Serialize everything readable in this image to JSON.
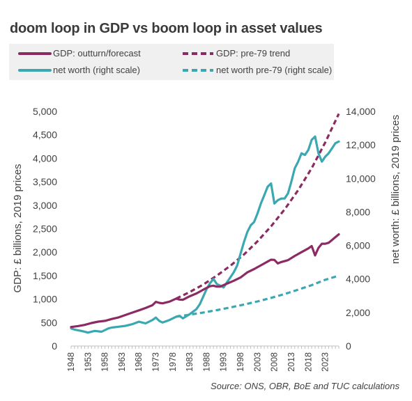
{
  "title": "doom loop in GDP vs boom loop in asset values",
  "source": "Source: ONS, OBR, BoE and TUC calculations",
  "colors": {
    "gdp": "#8c2a63",
    "networth": "#3aa8b1",
    "axis": "#bfbfbf",
    "legend_bg": "#f0f0f0",
    "text": "#404040"
  },
  "chart_data": {
    "type": "line",
    "title": "doom loop in GDP vs boom loop in asset values",
    "x_tick_labels": [
      "1948",
      "1953",
      "1958",
      "1963",
      "1968",
      "1973",
      "1978",
      "1983",
      "1988",
      "1993",
      "1998",
      "2003",
      "2008",
      "2013",
      "2018",
      "2023"
    ],
    "xlim": [
      1948,
      2027
    ],
    "ylabel": "GDP: £ billions, 2019 prices",
    "ylim": [
      0,
      5000
    ],
    "y_ticks": [
      "0",
      "500",
      "1,000",
      "1,500",
      "2,000",
      "2,500",
      "3,000",
      "3,500",
      "4,000",
      "4,500",
      "5,000"
    ],
    "y2label": "net worth: £ billions, 2019 prices",
    "y2lim": [
      0,
      14000
    ],
    "y2_ticks": [
      "0",
      "2,000",
      "4,000",
      "6,000",
      "8,000",
      "10,000",
      "12,000",
      "14,000"
    ],
    "grid": false,
    "legend_position": "top",
    "series": [
      {
        "name": "GDP: outturn/forecast",
        "axis": "left",
        "style": "solid",
        "color": "#8c2a63",
        "points": [
          [
            1948,
            405
          ],
          [
            1950,
            425
          ],
          [
            1952,
            450
          ],
          [
            1954,
            490
          ],
          [
            1956,
            520
          ],
          [
            1958,
            535
          ],
          [
            1960,
            575
          ],
          [
            1962,
            610
          ],
          [
            1964,
            660
          ],
          [
            1966,
            710
          ],
          [
            1968,
            760
          ],
          [
            1970,
            810
          ],
          [
            1972,
            870
          ],
          [
            1973,
            940
          ],
          [
            1974,
            920
          ],
          [
            1975,
            910
          ],
          [
            1977,
            945
          ],
          [
            1979,
            1010
          ],
          [
            1980,
            990
          ],
          [
            1981,
            985
          ],
          [
            1983,
            1060
          ],
          [
            1985,
            1120
          ],
          [
            1987,
            1200
          ],
          [
            1989,
            1275
          ],
          [
            1990,
            1285
          ],
          [
            1991,
            1265
          ],
          [
            1992,
            1265
          ],
          [
            1994,
            1330
          ],
          [
            1996,
            1390
          ],
          [
            1998,
            1460
          ],
          [
            2000,
            1570
          ],
          [
            2002,
            1640
          ],
          [
            2004,
            1720
          ],
          [
            2006,
            1800
          ],
          [
            2007,
            1840
          ],
          [
            2008,
            1835
          ],
          [
            2009,
            1760
          ],
          [
            2010,
            1790
          ],
          [
            2012,
            1830
          ],
          [
            2014,
            1920
          ],
          [
            2016,
            2000
          ],
          [
            2018,
            2080
          ],
          [
            2019,
            2130
          ],
          [
            2020,
            1930
          ],
          [
            2021,
            2090
          ],
          [
            2022,
            2180
          ],
          [
            2023,
            2180
          ],
          [
            2024,
            2200
          ],
          [
            2025,
            2260
          ],
          [
            2026,
            2320
          ],
          [
            2027,
            2380
          ]
        ]
      },
      {
        "name": "GDP: pre-79 trend",
        "axis": "left",
        "style": "dashed",
        "color": "#8c2a63",
        "points": [
          [
            1979,
            1010
          ],
          [
            1983,
            1150
          ],
          [
            1987,
            1310
          ],
          [
            1991,
            1500
          ],
          [
            1995,
            1710
          ],
          [
            1999,
            1950
          ],
          [
            2003,
            2230
          ],
          [
            2007,
            2550
          ],
          [
            2011,
            2910
          ],
          [
            2015,
            3320
          ],
          [
            2019,
            3790
          ],
          [
            2023,
            4340
          ],
          [
            2027,
            4950
          ]
        ]
      },
      {
        "name": "net worth (right scale)",
        "axis": "right",
        "style": "solid",
        "color": "#3aa8b1",
        "points": [
          [
            1948,
            1050
          ],
          [
            1949,
            980
          ],
          [
            1951,
            900
          ],
          [
            1953,
            800
          ],
          [
            1955,
            900
          ],
          [
            1957,
            850
          ],
          [
            1959,
            1050
          ],
          [
            1960,
            1100
          ],
          [
            1962,
            1150
          ],
          [
            1964,
            1200
          ],
          [
            1966,
            1300
          ],
          [
            1968,
            1450
          ],
          [
            1970,
            1350
          ],
          [
            1972,
            1550
          ],
          [
            1973,
            1700
          ],
          [
            1974,
            1500
          ],
          [
            1975,
            1400
          ],
          [
            1977,
            1550
          ],
          [
            1979,
            1750
          ],
          [
            1980,
            1800
          ],
          [
            1981,
            1650
          ],
          [
            1983,
            1900
          ],
          [
            1985,
            2200
          ],
          [
            1986,
            2500
          ],
          [
            1988,
            3400
          ],
          [
            1989,
            3750
          ],
          [
            1990,
            4000
          ],
          [
            1991,
            3700
          ],
          [
            1992,
            3600
          ],
          [
            1993,
            3500
          ],
          [
            1994,
            3800
          ],
          [
            1995,
            4100
          ],
          [
            1996,
            4400
          ],
          [
            1997,
            4800
          ],
          [
            1998,
            5500
          ],
          [
            1999,
            6200
          ],
          [
            2000,
            6800
          ],
          [
            2001,
            7200
          ],
          [
            2002,
            7400
          ],
          [
            2003,
            7900
          ],
          [
            2004,
            8500
          ],
          [
            2005,
            9000
          ],
          [
            2006,
            9500
          ],
          [
            2007,
            9700
          ],
          [
            2008,
            8500
          ],
          [
            2009,
            8700
          ],
          [
            2010,
            8800
          ],
          [
            2011,
            8800
          ],
          [
            2012,
            9100
          ],
          [
            2013,
            9800
          ],
          [
            2014,
            10600
          ],
          [
            2015,
            11000
          ],
          [
            2016,
            11500
          ],
          [
            2017,
            11400
          ],
          [
            2018,
            11700
          ],
          [
            2019,
            12300
          ],
          [
            2020,
            12500
          ],
          [
            2021,
            11500
          ],
          [
            2022,
            11000
          ],
          [
            2023,
            11300
          ],
          [
            2024,
            11500
          ],
          [
            2025,
            11800
          ],
          [
            2026,
            12100
          ],
          [
            2027,
            12200
          ]
        ]
      },
      {
        "name": "net worth pre-79 (right scale)",
        "axis": "right",
        "style": "dashed",
        "color": "#3aa8b1",
        "points": [
          [
            1979,
            1750
          ],
          [
            1983,
            1870
          ],
          [
            1987,
            2000
          ],
          [
            1991,
            2140
          ],
          [
            1995,
            2300
          ],
          [
            1999,
            2470
          ],
          [
            2003,
            2660
          ],
          [
            2007,
            2870
          ],
          [
            2011,
            3100
          ],
          [
            2015,
            3360
          ],
          [
            2019,
            3630
          ],
          [
            2023,
            3950
          ],
          [
            2027,
            4200
          ]
        ]
      }
    ]
  }
}
